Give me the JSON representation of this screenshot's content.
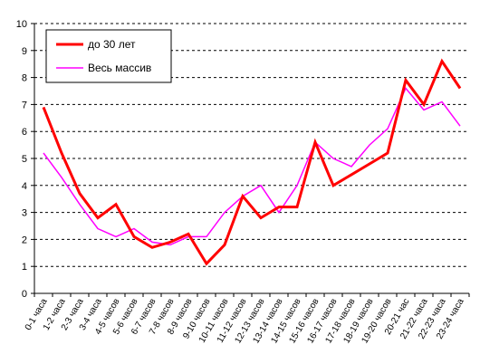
{
  "chart_data": {
    "type": "line",
    "categories": [
      "0-1 часа",
      "1-2 часа",
      "2-3 часа",
      "3-4 часа",
      "4-5 часов",
      "5-6 часов",
      "6-7 часов",
      "7-8 часов",
      "8-9 часов",
      "9-10 часов",
      "10-11 часов",
      "11-12 часов",
      "12-13 часов",
      "13-14 часов",
      "14-15 часов",
      "15-16 часов",
      "16-17 часов",
      "17-18 часов",
      "18-19 часов",
      "19-20 часов",
      "20-21 час",
      "21-22 часа",
      "22-23 часа",
      "23-24 часа"
    ],
    "series": [
      {
        "name": "до 30 лет",
        "color": "#ff0000",
        "values": [
          6.9,
          5.2,
          3.7,
          2.8,
          3.3,
          2.1,
          1.7,
          1.9,
          2.2,
          1.1,
          1.8,
          3.6,
          2.8,
          3.2,
          3.2,
          5.6,
          4.0,
          4.4,
          4.8,
          5.2,
          7.9,
          7.0,
          8.6,
          7.6
        ]
      },
      {
        "name": "Весь массив",
        "color": "#ff00ff",
        "values": [
          5.2,
          4.3,
          3.3,
          2.4,
          2.1,
          2.4,
          1.9,
          1.8,
          2.1,
          2.1,
          3.0,
          3.6,
          4.0,
          3.0,
          4.0,
          5.6,
          5.0,
          4.7,
          5.5,
          6.1,
          7.6,
          6.8,
          7.1,
          6.2
        ]
      }
    ],
    "ylim": [
      0,
      10
    ],
    "yticks": [
      "0",
      "1",
      "2",
      "3",
      "4",
      "5",
      "6",
      "7",
      "8",
      "9",
      "10"
    ],
    "grid": true,
    "legend_position": "top-left",
    "title": "",
    "xlabel": "",
    "ylabel": ""
  }
}
